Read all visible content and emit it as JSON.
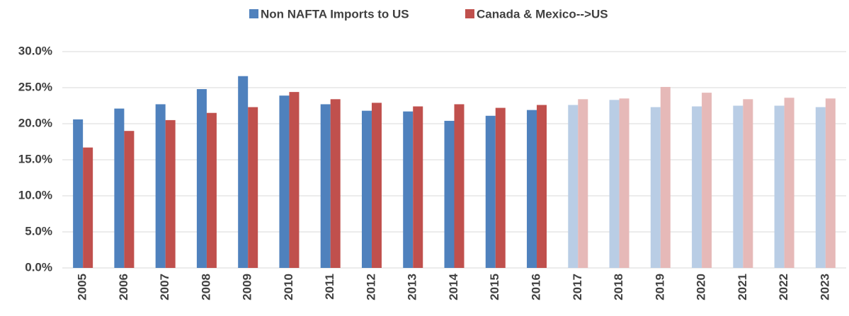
{
  "chart_data": {
    "type": "bar",
    "categories": [
      "2005",
      "2006",
      "2007",
      "2008",
      "2009",
      "2010",
      "2011",
      "2012",
      "2013",
      "2014",
      "2015",
      "2016",
      "2017",
      "2018",
      "2019",
      "2020",
      "2021",
      "2022",
      "2023"
    ],
    "series": [
      {
        "name": "Non NAFTA Imports to US",
        "color": "#4f81bd",
        "colors": [
          "#4f81bd",
          "#4f81bd",
          "#4f81bd",
          "#4f81bd",
          "#4f81bd",
          "#4f81bd",
          "#4f81bd",
          "#4f81bd",
          "#4f81bd",
          "#4f81bd",
          "#4f81bd",
          "#4f81bd",
          "#b9cde5",
          "#b9cde5",
          "#b9cde5",
          "#b9cde5",
          "#b9cde5",
          "#b9cde5",
          "#b9cde5"
        ],
        "values": [
          20.6,
          22.1,
          22.7,
          24.8,
          26.6,
          23.9,
          22.7,
          21.8,
          21.7,
          20.4,
          21.1,
          21.9,
          22.6,
          23.3,
          22.3,
          22.4,
          22.5,
          22.5,
          22.3
        ]
      },
      {
        "name": "Canada & Mexico-->US",
        "color": "#c0504d",
        "colors": [
          "#c0504d",
          "#c0504d",
          "#c0504d",
          "#c0504d",
          "#c0504d",
          "#c0504d",
          "#c0504d",
          "#c0504d",
          "#c0504d",
          "#c0504d",
          "#c0504d",
          "#c0504d",
          "#e6b9b8",
          "#e6b9b8",
          "#e6b9b8",
          "#e6b9b8",
          "#e6b9b8",
          "#e6b9b8",
          "#e6b9b8"
        ],
        "values": [
          16.7,
          19.0,
          20.5,
          21.5,
          22.3,
          24.4,
          23.4,
          22.9,
          22.4,
          22.7,
          22.2,
          22.6,
          23.4,
          23.5,
          25.1,
          24.3,
          23.4,
          23.6,
          23.5
        ]
      }
    ],
    "ylim": [
      0,
      30
    ],
    "yticks": [
      {
        "value": 0,
        "label": "0.0%"
      },
      {
        "value": 5,
        "label": "5.0%"
      },
      {
        "value": 10,
        "label": "10.0%"
      },
      {
        "value": 15,
        "label": "15.0%"
      },
      {
        "value": 20,
        "label": "20.0%"
      },
      {
        "value": 25,
        "label": "25.0%"
      },
      {
        "value": 30,
        "label": "30.0%"
      }
    ],
    "grid": true,
    "legend": "top"
  }
}
